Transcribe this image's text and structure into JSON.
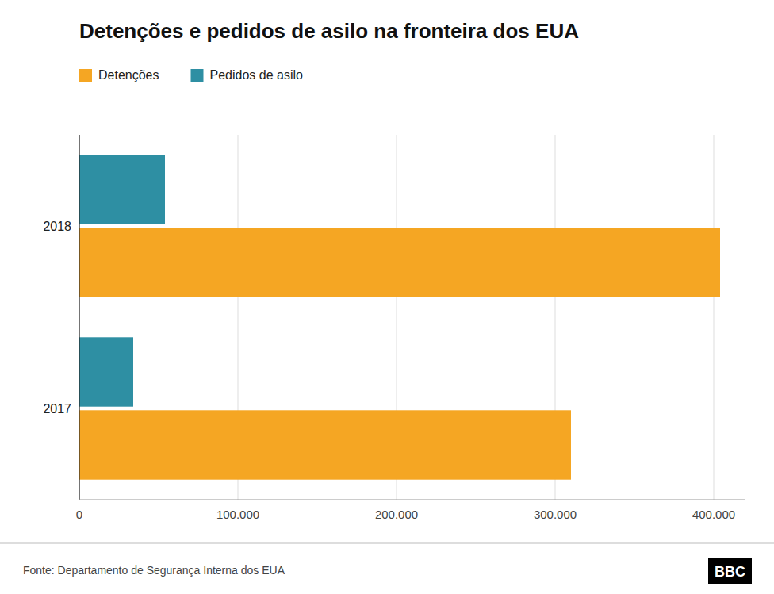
{
  "chart_data": {
    "type": "bar",
    "orientation": "horizontal",
    "title": "Detenções e pedidos de asilo na fronteira dos EUA",
    "categories": [
      "2017",
      "2018"
    ],
    "series": [
      {
        "name": "Detenções",
        "color": "#F5A623",
        "values": [
          310000,
          404000
        ]
      },
      {
        "name": "Pedidos de asilo",
        "color": "#2E8FA3",
        "values": [
          34000,
          54000
        ]
      }
    ],
    "xlim": [
      0,
      420000
    ],
    "xticks": [
      0,
      {
        "value": 100000,
        "label": "100.000"
      },
      {
        "value": 200000,
        "label": "200.000"
      },
      {
        "value": 300000,
        "label": "300.000"
      },
      {
        "value": 400000,
        "label": "400.000"
      }
    ],
    "grid": true,
    "legend": "top-left",
    "annotations": [
      "Fonte: Departamento de Segurança Interna dos EUA",
      "BBC"
    ]
  }
}
